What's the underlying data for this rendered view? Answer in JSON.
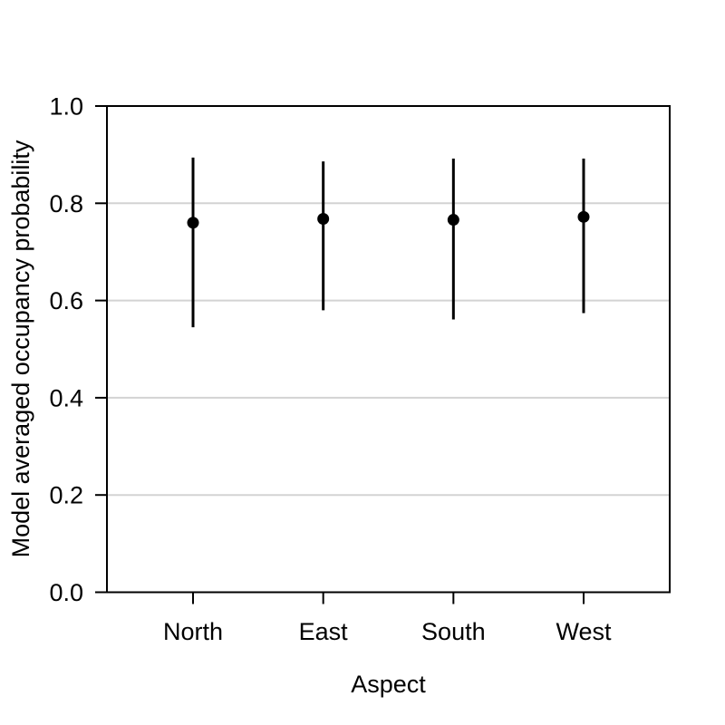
{
  "figure": {
    "background": "#ffffff"
  },
  "chart_data": {
    "type": "scatter",
    "title": "",
    "xlabel": "Aspect",
    "ylabel": "Model averaged occupancy probability",
    "categories": [
      "North",
      "East",
      "South",
      "West"
    ],
    "series": [
      {
        "name": "Model averaged occupancy probability",
        "values": [
          0.76,
          0.768,
          0.766,
          0.772
        ],
        "ci_low": [
          0.545,
          0.58,
          0.561,
          0.574
        ],
        "ci_high": [
          0.894,
          0.886,
          0.892,
          0.892
        ]
      }
    ],
    "ylim": [
      0.0,
      1.0
    ],
    "yticks": [
      0.0,
      0.2,
      0.4,
      0.6,
      0.8,
      1.0
    ],
    "ytick_labels": [
      "0.0",
      "0.2",
      "0.4",
      "0.6",
      "0.8",
      "1.0"
    ],
    "grid": "horizontal",
    "legend": "none",
    "colors": {
      "point": "#000000",
      "error_bar": "#000000",
      "gridline": "#d3d3d3",
      "axis": "#000000",
      "text": "#000000"
    }
  }
}
